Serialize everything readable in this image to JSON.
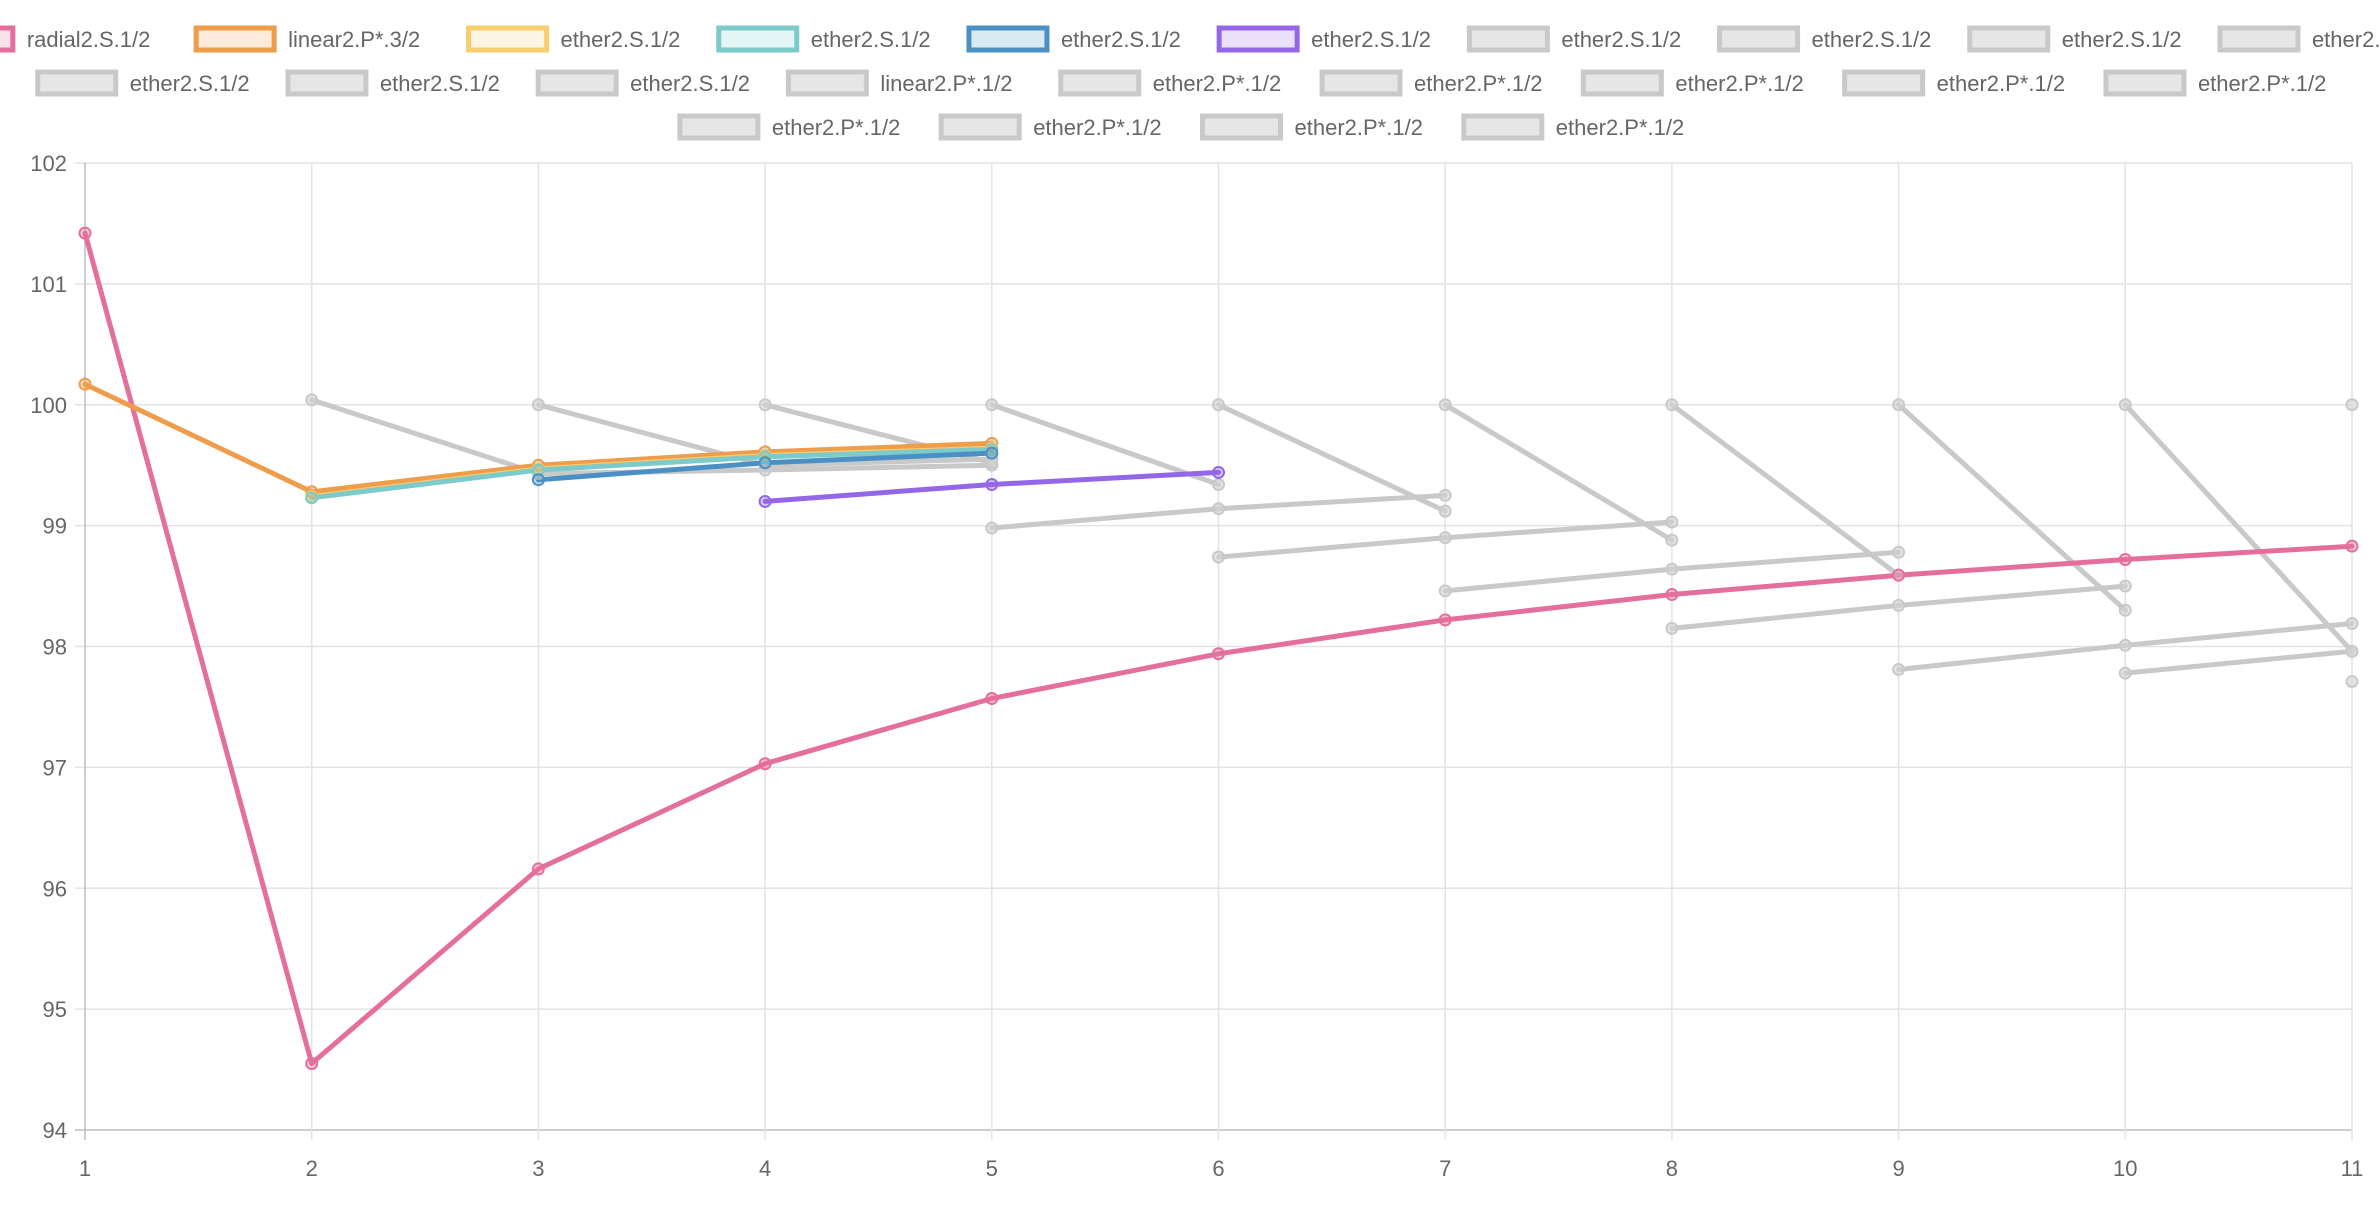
{
  "chart_data": {
    "type": "line",
    "title": "",
    "xlabel": "",
    "ylabel": "",
    "xlim": [
      1,
      11
    ],
    "ylim": [
      94,
      102
    ],
    "x_ticks": [
      1,
      2,
      3,
      4,
      5,
      6,
      7,
      8,
      9,
      10,
      11
    ],
    "y_ticks": [
      94,
      95,
      96,
      97,
      98,
      99,
      100,
      101,
      102
    ],
    "grid": true,
    "legend_position": "top-center",
    "series": [
      {
        "name": "radial2.S.1/2",
        "color": "#e46f9c",
        "active": true,
        "points": [
          [
            1,
            101.42
          ],
          [
            2,
            94.55
          ],
          [
            3,
            96.16
          ],
          [
            4,
            97.03
          ],
          [
            5,
            97.57
          ],
          [
            6,
            97.94
          ],
          [
            7,
            98.22
          ],
          [
            8,
            98.43
          ],
          [
            9,
            98.59
          ],
          [
            10,
            98.72
          ],
          [
            11,
            98.83
          ]
        ]
      },
      {
        "name": "linear2.P*.3/2",
        "color": "#ef9c4b",
        "active": true,
        "points": [
          [
            1,
            100.17
          ],
          [
            2,
            99.28
          ],
          [
            3,
            99.5
          ],
          [
            4,
            99.61
          ],
          [
            5,
            99.68
          ]
        ]
      },
      {
        "name": "ether2.S.1/2",
        "color": "#f7cd6e",
        "active": true,
        "points": [
          [
            2,
            99.24
          ],
          [
            3,
            99.47
          ],
          [
            4,
            99.58
          ],
          [
            5,
            99.64
          ]
        ]
      },
      {
        "name": "ether2.S.1/2",
        "color": "#7ccaca",
        "active": true,
        "points": [
          [
            2,
            99.23
          ],
          [
            3,
            99.46
          ],
          [
            4,
            99.57
          ],
          [
            5,
            99.63
          ]
        ]
      },
      {
        "name": "ether2.S.1/2",
        "color": "#4a90c4",
        "active": true,
        "points": [
          [
            3,
            99.38
          ],
          [
            4,
            99.52
          ],
          [
            5,
            99.6
          ]
        ]
      },
      {
        "name": "ether2.S.1/2",
        "color": "#9466e8",
        "active": true,
        "points": [
          [
            4,
            99.2
          ],
          [
            5,
            99.34
          ],
          [
            6,
            99.44
          ]
        ]
      },
      {
        "name": "ether2.S.1/2",
        "color": "#c9c9c9",
        "active": false,
        "points": [
          [
            2,
            100.04
          ],
          [
            3,
            99.43
          ],
          [
            4,
            99.46
          ],
          [
            5,
            99.5
          ]
        ]
      },
      {
        "name": "ether2.S.1/2",
        "color": "#c9c9c9",
        "active": false,
        "points": [
          [
            3,
            100.0
          ],
          [
            4,
            99.5
          ],
          [
            5,
            99.55
          ]
        ]
      },
      {
        "name": "ether2.S.1/2",
        "color": "#c9c9c9",
        "active": false,
        "points": [
          [
            4,
            100.0
          ],
          [
            5,
            99.52
          ]
        ]
      },
      {
        "name": "ether2.S.1/2",
        "color": "#c9c9c9",
        "active": false,
        "points": [
          [
            5,
            100.0
          ],
          [
            6,
            99.34
          ]
        ]
      },
      {
        "name": "ether2.S.1/2",
        "color": "#c9c9c9",
        "active": false,
        "points": [
          [
            6,
            100.0
          ],
          [
            7,
            99.12
          ]
        ]
      },
      {
        "name": "ether2.S.1/2",
        "color": "#c9c9c9",
        "active": false,
        "points": [
          [
            7,
            100.0
          ],
          [
            8,
            98.88
          ]
        ]
      },
      {
        "name": "ether2.S.1/2",
        "color": "#c9c9c9",
        "active": false,
        "points": [
          [
            8,
            100.0
          ],
          [
            9,
            98.59
          ]
        ]
      },
      {
        "name": "linear2.P*.1/2",
        "color": "#c9c9c9",
        "active": false,
        "points": [
          [
            9,
            100.0
          ],
          [
            10,
            98.3
          ]
        ]
      },
      {
        "name": "ether2.P*.1/2",
        "color": "#c9c9c9",
        "active": false,
        "points": [
          [
            10,
            100.0
          ],
          [
            11,
            97.96
          ]
        ]
      },
      {
        "name": "ether2.P*.1/2",
        "color": "#c9c9c9",
        "active": false,
        "points": [
          [
            11,
            100.0
          ]
        ]
      },
      {
        "name": "ether2.P*.1/2",
        "color": "#c9c9c9",
        "active": false,
        "points": [
          [
            5,
            98.98
          ],
          [
            6,
            99.14
          ],
          [
            7,
            99.25
          ]
        ]
      },
      {
        "name": "ether2.P*.1/2",
        "color": "#c9c9c9",
        "active": false,
        "points": [
          [
            6,
            98.74
          ],
          [
            7,
            98.9
          ],
          [
            8,
            99.03
          ]
        ]
      },
      {
        "name": "ether2.P*.1/2",
        "color": "#c9c9c9",
        "active": false,
        "points": [
          [
            7,
            98.46
          ],
          [
            8,
            98.64
          ],
          [
            9,
            98.78
          ]
        ]
      },
      {
        "name": "ether2.P*.1/2",
        "color": "#c9c9c9",
        "active": false,
        "points": [
          [
            8,
            98.15
          ],
          [
            9,
            98.34
          ],
          [
            10,
            98.5
          ]
        ]
      },
      {
        "name": "ether2.P*.1/2",
        "color": "#c9c9c9",
        "active": false,
        "points": [
          [
            9,
            97.81
          ],
          [
            10,
            98.01
          ],
          [
            11,
            98.19
          ]
        ]
      },
      {
        "name": "ether2.P*.1/2",
        "color": "#c9c9c9",
        "active": false,
        "points": [
          [
            10,
            97.78
          ],
          [
            11,
            97.96
          ]
        ]
      },
      {
        "name": "ether2.P*.1/2",
        "color": "#c9c9c9",
        "active": false,
        "points": [
          [
            11,
            97.71
          ]
        ]
      }
    ]
  }
}
